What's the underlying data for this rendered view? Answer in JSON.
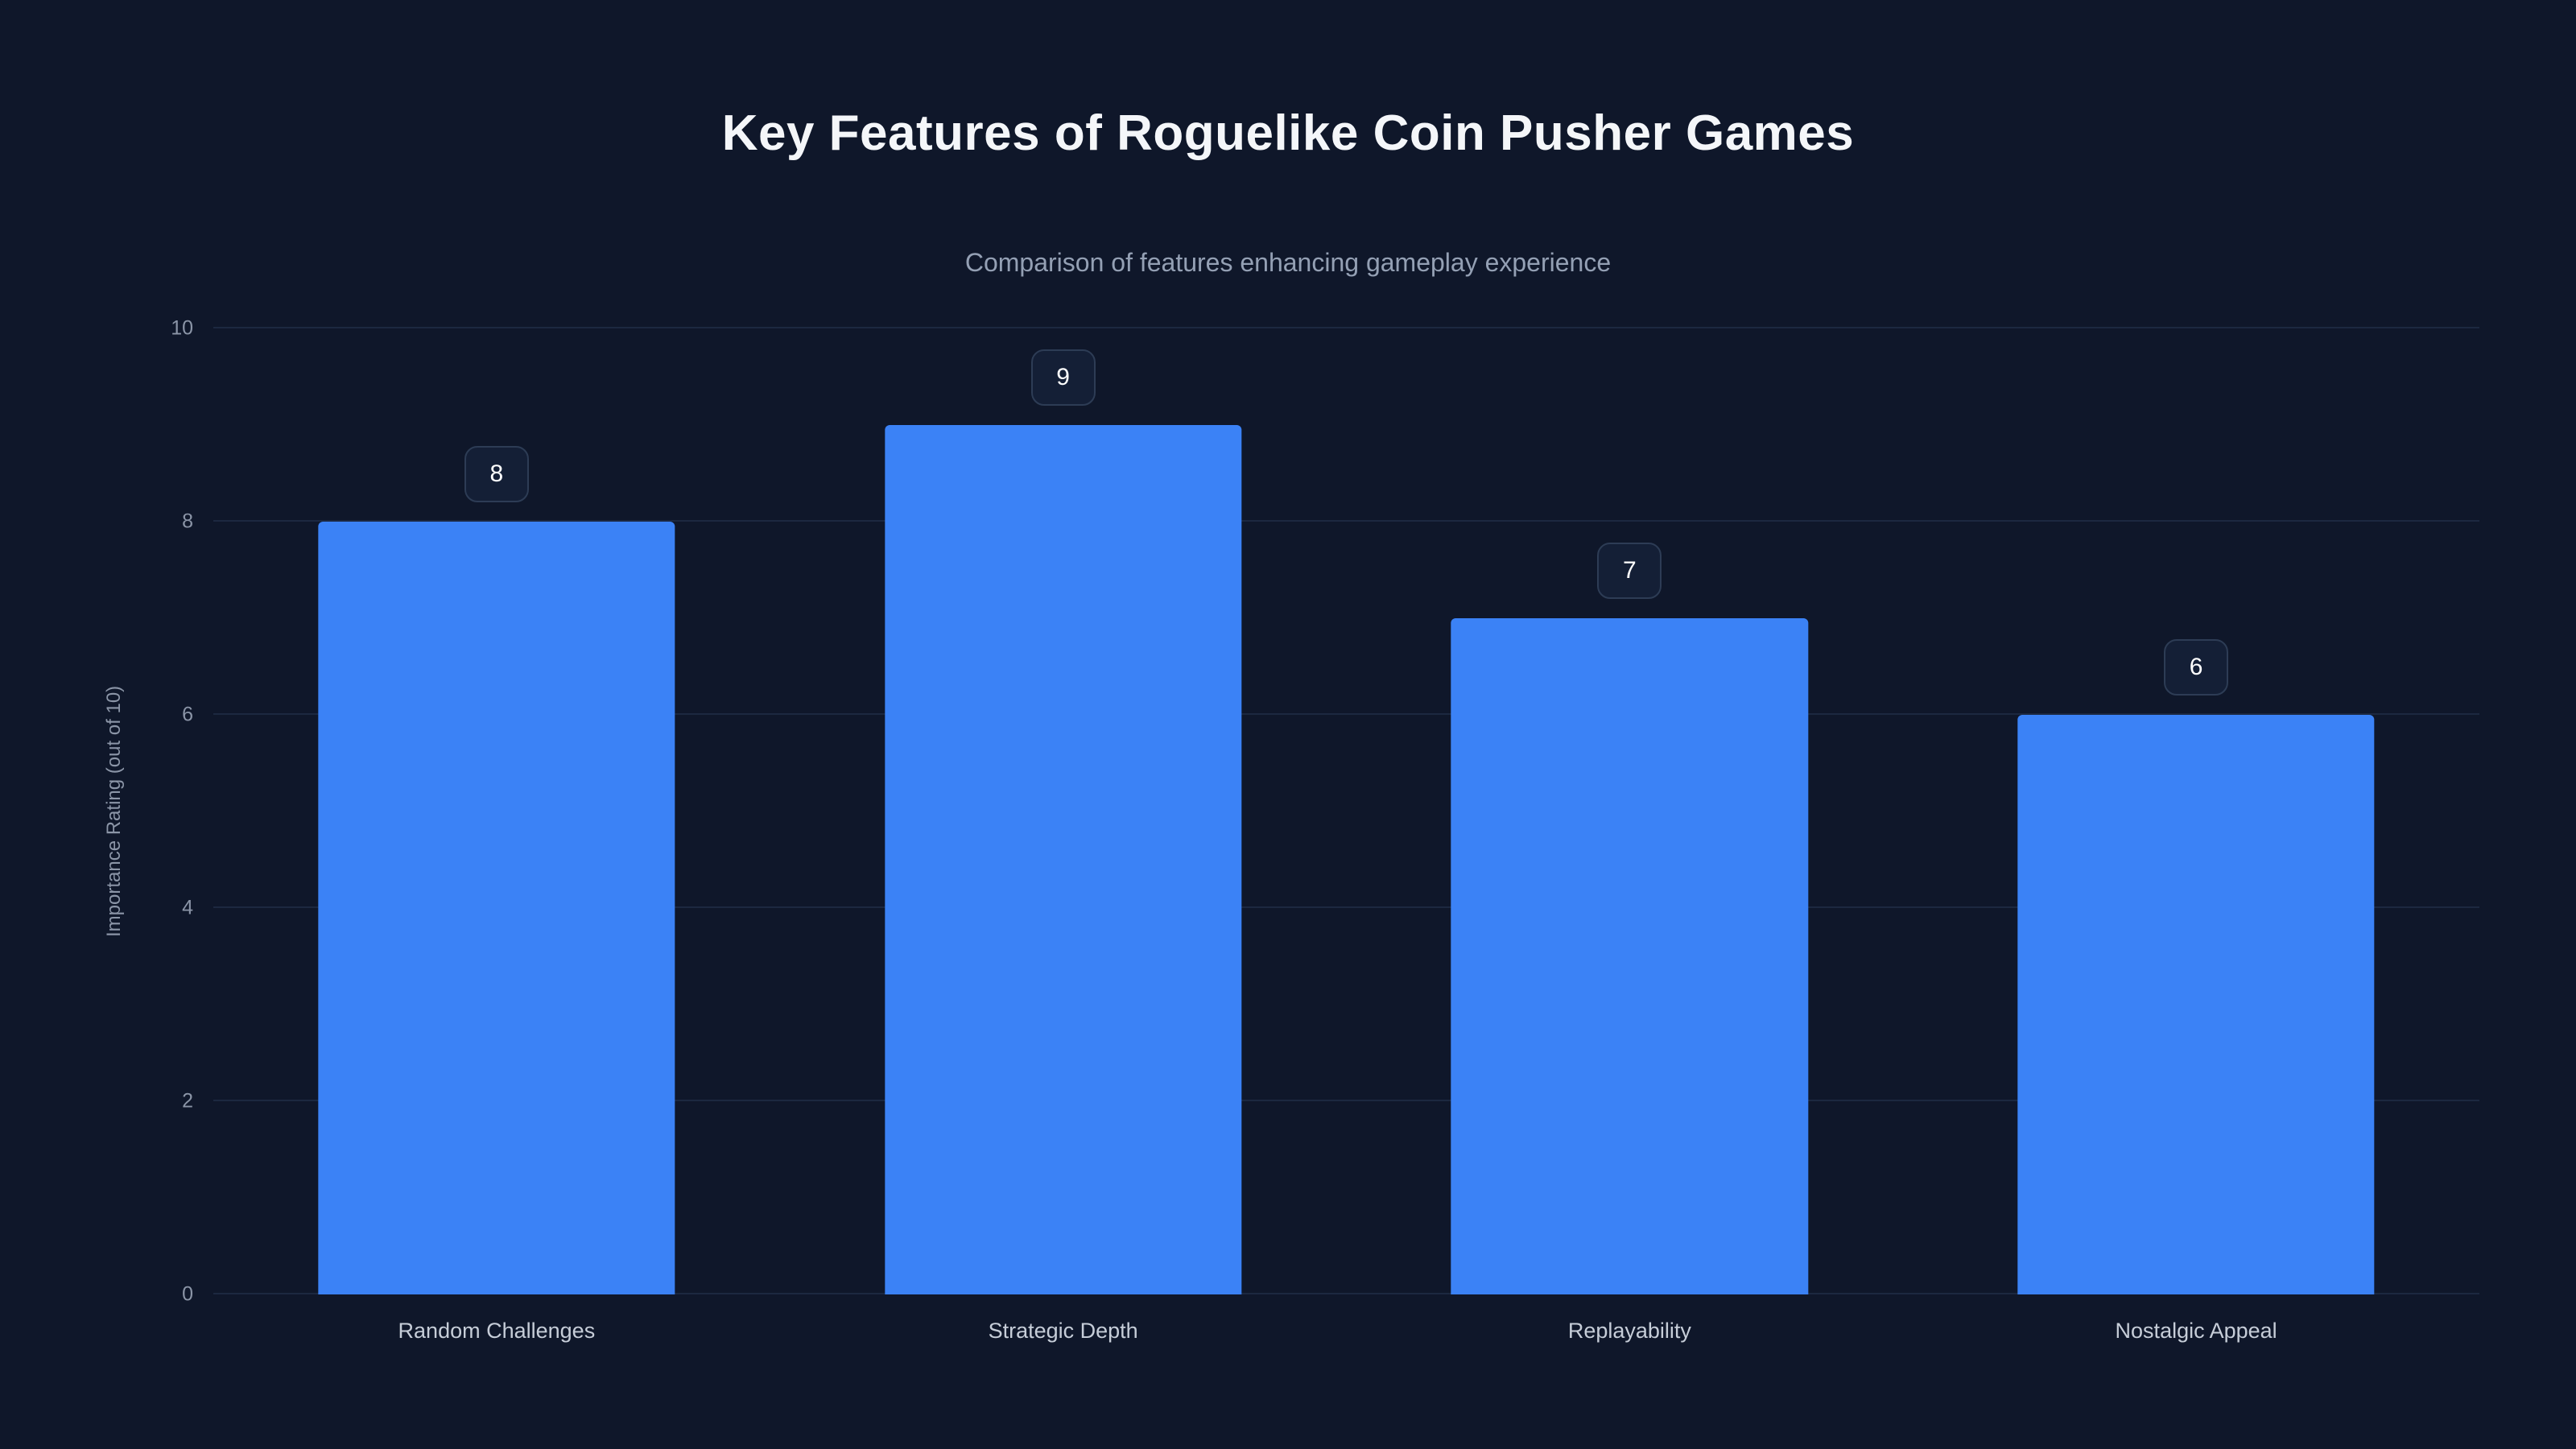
{
  "page": {
    "background": "#0f172a"
  },
  "chart_data": {
    "type": "bar",
    "title": "Key Features of Roguelike Coin Pusher Games",
    "subtitle": "Comparison of features enhancing gameplay experience",
    "ylabel": "Importance Rating (out of 10)",
    "categories": [
      "Random Challenges",
      "Strategic Depth",
      "Replayability",
      "Nostalgic Appeal"
    ],
    "values": [
      8,
      9,
      7,
      6
    ],
    "ylim": [
      0,
      10
    ],
    "yticks": [
      0,
      2,
      4,
      6,
      8,
      10
    ],
    "bar_color": "#3b82f6",
    "grid_color": "#1c2840",
    "grid": "on",
    "legend_position": "none",
    "value_labels_visible": true
  }
}
